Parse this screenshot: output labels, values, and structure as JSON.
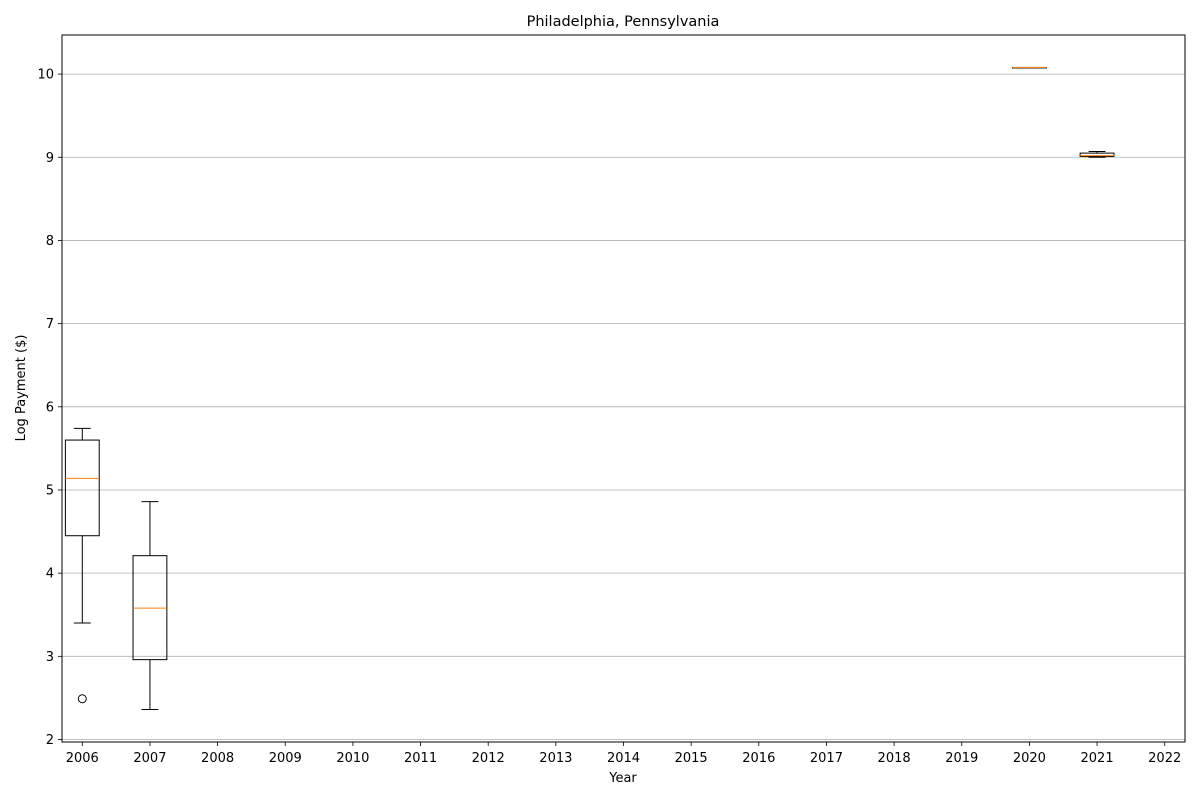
{
  "chart_data": {
    "type": "box",
    "title": "Philadelphia, Pennsylvania",
    "xlabel": "Year",
    "ylabel": "Log Payment ($)",
    "categories": [
      "2006",
      "2007",
      "2008",
      "2009",
      "2010",
      "2011",
      "2012",
      "2013",
      "2014",
      "2015",
      "2016",
      "2017",
      "2018",
      "2019",
      "2020",
      "2021",
      "2022"
    ],
    "ylim": [
      1.97,
      10.47
    ],
    "yticks": [
      2,
      3,
      4,
      5,
      6,
      7,
      8,
      9,
      10
    ],
    "grid": "y",
    "boxes": [
      {
        "category": "2006",
        "whisker_low": 3.4,
        "q1": 4.45,
        "median": 5.14,
        "q3": 5.6,
        "whisker_high": 5.74,
        "outliers": [
          2.49
        ]
      },
      {
        "category": "2007",
        "whisker_low": 2.36,
        "q1": 2.96,
        "median": 3.58,
        "q3": 4.21,
        "whisker_high": 4.86,
        "outliers": []
      },
      {
        "category": "2020",
        "whisker_low": 10.08,
        "q1": 10.08,
        "median": 10.08,
        "q3": 10.08,
        "whisker_high": 10.08,
        "outliers": []
      },
      {
        "category": "2021",
        "whisker_low": 9.0,
        "q1": 9.01,
        "median": 9.02,
        "q3": 9.05,
        "whisker_high": 9.07,
        "outliers": []
      }
    ],
    "colors": {
      "box": "#000000",
      "median": "#ff7f0e",
      "grid": "#b0b0b0"
    }
  }
}
